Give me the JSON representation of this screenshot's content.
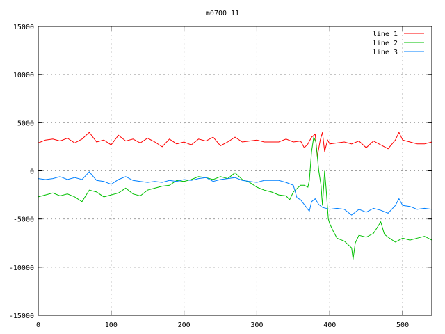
{
  "chart_data": {
    "type": "line",
    "title": "m0700_11",
    "xlabel": "",
    "ylabel": "",
    "xlim": [
      0,
      540
    ],
    "ylim": [
      -15000,
      15000
    ],
    "xticks": [
      0,
      100,
      200,
      300,
      400,
      500
    ],
    "yticks": [
      -15000,
      -10000,
      -5000,
      0,
      5000,
      10000,
      15000
    ],
    "grid": true,
    "legend_position": "top-right",
    "series": [
      {
        "name": "line 1",
        "color": "#ff0000",
        "x": [
          0,
          10,
          20,
          30,
          40,
          50,
          60,
          70,
          80,
          90,
          100,
          110,
          120,
          130,
          140,
          150,
          160,
          170,
          180,
          190,
          200,
          210,
          220,
          230,
          240,
          250,
          260,
          270,
          280,
          290,
          300,
          310,
          320,
          330,
          340,
          350,
          360,
          365,
          370,
          375,
          380,
          383,
          387,
          390,
          393,
          397,
          400,
          410,
          420,
          430,
          440,
          450,
          460,
          470,
          480,
          490,
          495,
          500,
          510,
          520,
          530,
          540
        ],
        "y": [
          2900,
          3200,
          3300,
          3100,
          3400,
          2900,
          3300,
          4000,
          3000,
          3200,
          2700,
          3700,
          3100,
          3300,
          2900,
          3400,
          3000,
          2500,
          3300,
          2800,
          3000,
          2700,
          3300,
          3100,
          3500,
          2600,
          3000,
          3500,
          3000,
          3100,
          3200,
          3000,
          3000,
          3000,
          3300,
          3000,
          3100,
          2400,
          2800,
          3500,
          3800,
          1500,
          3200,
          4000,
          2000,
          3200,
          2800,
          2900,
          3000,
          2800,
          3100,
          2400,
          3100,
          2700,
          2300,
          3200,
          4000,
          3200,
          3000,
          2800,
          2800,
          3000
        ]
      },
      {
        "name": "line 2",
        "color": "#00c000",
        "x": [
          0,
          10,
          20,
          30,
          40,
          50,
          60,
          70,
          80,
          90,
          100,
          110,
          120,
          130,
          140,
          150,
          160,
          170,
          180,
          190,
          200,
          210,
          220,
          230,
          240,
          250,
          260,
          270,
          280,
          290,
          300,
          310,
          320,
          330,
          340,
          345,
          350,
          360,
          365,
          370,
          372,
          375,
          378,
          381,
          385,
          388,
          390,
          393,
          395,
          398,
          400,
          405,
          410,
          420,
          430,
          432,
          435,
          440,
          450,
          460,
          470,
          475,
          480,
          490,
          500,
          510,
          520,
          530,
          540
        ],
        "y": [
          -2700,
          -2500,
          -2300,
          -2600,
          -2400,
          -2700,
          -3200,
          -2000,
          -2200,
          -2700,
          -2500,
          -2300,
          -1800,
          -2400,
          -2600,
          -2000,
          -1800,
          -1600,
          -1500,
          -1000,
          -1100,
          -900,
          -600,
          -700,
          -900,
          -600,
          -800,
          -200,
          -900,
          -1200,
          -1700,
          -2000,
          -2200,
          -2500,
          -2600,
          -3000,
          -2200,
          -1500,
          -1500,
          -1700,
          -1000,
          2000,
          3500,
          3000,
          0,
          -1500,
          -3600,
          0,
          -1800,
          -5000,
          -5500,
          -6300,
          -7000,
          -7300,
          -8000,
          -9200,
          -7500,
          -6700,
          -6900,
          -6500,
          -5300,
          -6600,
          -6900,
          -7400,
          -7000,
          -7200,
          -7000,
          -6800,
          -7200
        ]
      },
      {
        "name": "line 3",
        "color": "#0080ff",
        "x": [
          0,
          10,
          20,
          30,
          40,
          50,
          60,
          70,
          80,
          90,
          100,
          110,
          120,
          130,
          140,
          150,
          160,
          170,
          180,
          190,
          200,
          210,
          220,
          230,
          240,
          250,
          260,
          270,
          280,
          290,
          300,
          310,
          320,
          330,
          340,
          350,
          355,
          360,
          370,
          372,
          375,
          380,
          385,
          390,
          400,
          410,
          420,
          430,
          440,
          450,
          460,
          470,
          480,
          490,
          495,
          500,
          510,
          520,
          530,
          540
        ],
        "y": [
          -800,
          -900,
          -800,
          -600,
          -900,
          -700,
          -900,
          -100,
          -1000,
          -1100,
          -1400,
          -900,
          -600,
          -1000,
          -1100,
          -1200,
          -1100,
          -1200,
          -1000,
          -1100,
          -900,
          -1000,
          -800,
          -700,
          -1100,
          -900,
          -800,
          -700,
          -1000,
          -1100,
          -1200,
          -1000,
          -1000,
          -1000,
          -1200,
          -1500,
          -2800,
          -3000,
          -4000,
          -4200,
          -3200,
          -2900,
          -3500,
          -3800,
          -4000,
          -3900,
          -4000,
          -4600,
          -4000,
          -4300,
          -3900,
          -4100,
          -4400,
          -3600,
          -2900,
          -3600,
          -3700,
          -4000,
          -3900,
          -4000
        ]
      }
    ]
  }
}
